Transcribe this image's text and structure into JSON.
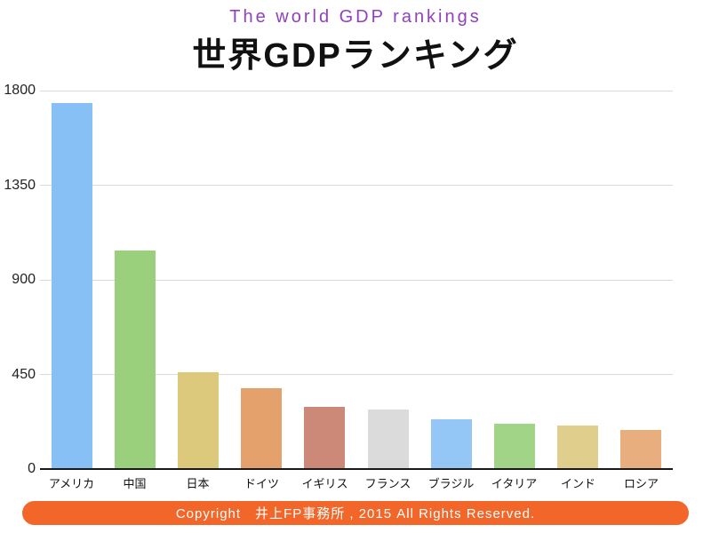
{
  "header": {
    "subtitle_en": "The world GDP rankings",
    "title_ja": "世界GDPランキング",
    "subtitle_color": "#9040C0"
  },
  "chart_data": {
    "type": "bar",
    "title": "世界GDPランキング",
    "subtitle": "The world GDP rankings",
    "categories": [
      "アメリカ",
      "中国",
      "日本",
      "ドイツ",
      "イギリス",
      "フランス",
      "ブラジル",
      "イタリア",
      "インド",
      "ロシア"
    ],
    "values": [
      1740,
      1040,
      460,
      385,
      295,
      285,
      235,
      215,
      205,
      185
    ],
    "bar_colors": [
      "#87C0F5",
      "#9ACF7C",
      "#DCC97C",
      "#E5A16B",
      "#CD8977",
      "#DBDBDB",
      "#95C7F6",
      "#A2D488",
      "#E0CE8C",
      "#E9AE7E"
    ],
    "xlabel": "",
    "ylabel": "",
    "ylim": [
      0,
      1800
    ],
    "yticks": [
      0,
      450,
      900,
      1350,
      1800
    ],
    "grid": true,
    "legend": false,
    "gridline_color": "#d9d9d9"
  },
  "footer": {
    "copyright": "Copyright　井上FP事務所 , 2015 All Rights Reserved.",
    "bg_color": "#F2662A"
  }
}
